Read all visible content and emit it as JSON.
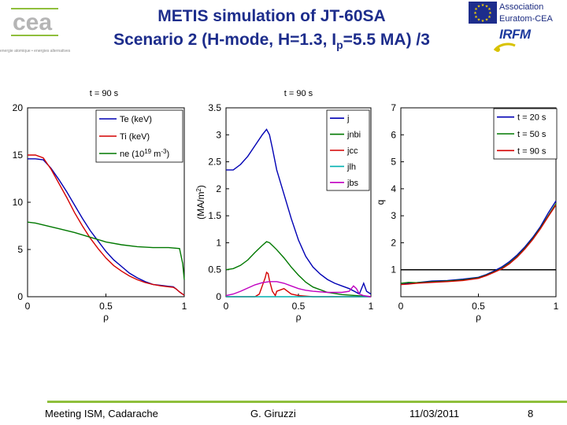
{
  "header": {
    "title_line1": "METIS simulation of JT-60SA",
    "title_line2_prefix": "Scenario 2 (H-mode, H=1.3, I",
    "title_line2_sub": "p",
    "title_line2_suffix": "=5.5 MA) /3",
    "assoc_line1": "Association",
    "assoc_line2": "Euratom-CEA",
    "irfm_logo": "IRFM",
    "cea_logo": "cea",
    "cea_tagline": "energie atomique • energies alternatives"
  },
  "footer": {
    "meeting": "Meeting ISM, Cadarache",
    "author": "G. Giruzzi",
    "date": "11/03/2011",
    "page": "8"
  },
  "colors": {
    "title": "#1d2d8c",
    "blue": "#0000b4",
    "red": "#d40000",
    "green": "#007800",
    "cyan": "#00b0b0",
    "magenta": "#c000c0",
    "footer_line": "#8fbf3c"
  },
  "chart_data": [
    {
      "type": "line",
      "title": "t = 90 s",
      "xlabel": "ρ",
      "ylabel": "",
      "xlim": [
        0,
        1
      ],
      "ylim": [
        0,
        20
      ],
      "xticks": [
        "0",
        "0.5",
        "1"
      ],
      "yticks": [
        "0",
        "5",
        "10",
        "15",
        "20"
      ],
      "legend_position": "top-right",
      "series": [
        {
          "name": "Te (keV)",
          "color": "#0000b4",
          "x": [
            0,
            0.05,
            0.1,
            0.15,
            0.2,
            0.25,
            0.3,
            0.35,
            0.4,
            0.45,
            0.5,
            0.55,
            0.6,
            0.65,
            0.7,
            0.75,
            0.8,
            0.85,
            0.9,
            0.93,
            0.95,
            0.97,
            1.0
          ],
          "y": [
            14.6,
            14.6,
            14.5,
            13.6,
            12.4,
            11.1,
            9.7,
            8.3,
            7.0,
            5.9,
            4.8,
            3.9,
            3.2,
            2.5,
            2.0,
            1.6,
            1.3,
            1.2,
            1.1,
            1.05,
            0.8,
            0.5,
            0.15
          ]
        },
        {
          "name": "Ti (keV)",
          "color": "#d40000",
          "x": [
            0,
            0.05,
            0.1,
            0.15,
            0.2,
            0.25,
            0.3,
            0.35,
            0.4,
            0.45,
            0.5,
            0.55,
            0.6,
            0.65,
            0.7,
            0.75,
            0.8,
            0.85,
            0.9,
            0.93,
            0.95,
            0.97,
            1.0
          ],
          "y": [
            15.0,
            15.0,
            14.7,
            13.5,
            12.0,
            10.5,
            8.9,
            7.5,
            6.2,
            5.1,
            4.1,
            3.3,
            2.7,
            2.2,
            1.8,
            1.5,
            1.3,
            1.15,
            1.05,
            1.0,
            0.8,
            0.5,
            0.15
          ]
        },
        {
          "name": "ne (10^19 m^-3)",
          "color": "#007800",
          "x": [
            0,
            0.05,
            0.1,
            0.15,
            0.2,
            0.3,
            0.4,
            0.5,
            0.6,
            0.7,
            0.8,
            0.9,
            0.97,
            0.99,
            1.0
          ],
          "y": [
            7.9,
            7.8,
            7.6,
            7.4,
            7.2,
            6.8,
            6.3,
            5.8,
            5.5,
            5.3,
            5.2,
            5.2,
            5.1,
            3.5,
            1.8
          ]
        }
      ]
    },
    {
      "type": "line",
      "title": "t = 90 s",
      "xlabel": "ρ",
      "ylabel": "(MA/m^2)",
      "xlim": [
        0,
        1
      ],
      "ylim": [
        0,
        3.5
      ],
      "xticks": [
        "0",
        "0.5",
        "1"
      ],
      "yticks": [
        "0",
        "0.5",
        "1",
        "1.5",
        "2",
        "2.5",
        "3",
        "3.5"
      ],
      "legend_position": "top-right",
      "series": [
        {
          "name": "j",
          "color": "#0000b4",
          "x": [
            0,
            0.05,
            0.1,
            0.15,
            0.2,
            0.25,
            0.28,
            0.3,
            0.32,
            0.35,
            0.4,
            0.45,
            0.5,
            0.55,
            0.6,
            0.65,
            0.7,
            0.75,
            0.8,
            0.85,
            0.9,
            0.92,
            0.95,
            0.97,
            1.0
          ],
          "y": [
            2.35,
            2.35,
            2.45,
            2.6,
            2.8,
            3.0,
            3.1,
            3.0,
            2.75,
            2.35,
            1.9,
            1.45,
            1.05,
            0.75,
            0.55,
            0.42,
            0.32,
            0.25,
            0.2,
            0.15,
            0.08,
            0.05,
            0.25,
            0.1,
            0.05
          ]
        },
        {
          "name": "jnbi",
          "color": "#007800",
          "x": [
            0,
            0.05,
            0.1,
            0.15,
            0.2,
            0.25,
            0.28,
            0.3,
            0.32,
            0.35,
            0.4,
            0.45,
            0.5,
            0.55,
            0.6,
            0.7,
            0.8,
            0.9,
            1.0
          ],
          "y": [
            0.5,
            0.52,
            0.58,
            0.68,
            0.82,
            0.95,
            1.02,
            1.0,
            0.95,
            0.87,
            0.72,
            0.55,
            0.4,
            0.27,
            0.18,
            0.08,
            0.04,
            0.02,
            0.0
          ]
        },
        {
          "name": "jcc",
          "color": "#d40000",
          "x": [
            0,
            0.1,
            0.2,
            0.23,
            0.25,
            0.27,
            0.28,
            0.29,
            0.3,
            0.32,
            0.34,
            0.35,
            0.4,
            0.45,
            0.5,
            0.6,
            0.8,
            1.0
          ],
          "y": [
            0.0,
            0.0,
            0.0,
            0.05,
            0.2,
            0.35,
            0.45,
            0.43,
            0.3,
            0.1,
            0.02,
            0.1,
            0.15,
            0.05,
            0.02,
            0.0,
            0.0,
            0.0
          ]
        },
        {
          "name": "jlh",
          "color": "#00b0b0",
          "x": [
            0,
            0.5,
            1.0
          ],
          "y": [
            0.0,
            0.0,
            0.0
          ]
        },
        {
          "name": "jbs",
          "color": "#c000c0",
          "x": [
            0,
            0.05,
            0.1,
            0.15,
            0.2,
            0.25,
            0.3,
            0.35,
            0.4,
            0.45,
            0.5,
            0.55,
            0.6,
            0.7,
            0.8,
            0.85,
            0.88,
            0.9,
            0.92,
            0.95,
            1.0
          ],
          "y": [
            0.02,
            0.05,
            0.1,
            0.16,
            0.22,
            0.26,
            0.28,
            0.28,
            0.25,
            0.2,
            0.15,
            0.12,
            0.1,
            0.08,
            0.08,
            0.1,
            0.2,
            0.15,
            0.05,
            0.02,
            0.0
          ]
        }
      ]
    },
    {
      "type": "line",
      "title": "",
      "xlabel": "ρ",
      "ylabel": "q",
      "xlim": [
        0,
        1
      ],
      "ylim": [
        0,
        7
      ],
      "xticks": [
        "0",
        "0.5",
        "1"
      ],
      "yticks": [
        "1",
        "2",
        "3",
        "4",
        "5",
        "6",
        "7"
      ],
      "legend_position": "top-right",
      "reference_line": {
        "y": 1
      },
      "series": [
        {
          "name": "t = 20 s",
          "color": "#0000b4",
          "x": [
            0,
            0.05,
            0.1,
            0.2,
            0.3,
            0.4,
            0.5,
            0.55,
            0.6,
            0.65,
            0.7,
            0.75,
            0.8,
            0.85,
            0.9,
            0.95,
            1.0
          ],
          "y": [
            0.45,
            0.5,
            0.52,
            0.58,
            0.6,
            0.65,
            0.72,
            0.82,
            0.95,
            1.1,
            1.3,
            1.55,
            1.85,
            2.2,
            2.6,
            3.1,
            3.55
          ]
        },
        {
          "name": "t = 50 s",
          "color": "#007800",
          "x": [
            0,
            0.05,
            0.1,
            0.2,
            0.3,
            0.4,
            0.5,
            0.55,
            0.6,
            0.65,
            0.7,
            0.75,
            0.8,
            0.85,
            0.9,
            0.95,
            1.0
          ],
          "y": [
            0.5,
            0.53,
            0.52,
            0.55,
            0.58,
            0.62,
            0.7,
            0.8,
            0.92,
            1.05,
            1.25,
            1.5,
            1.8,
            2.15,
            2.55,
            3.0,
            3.45
          ]
        },
        {
          "name": "t = 90 s",
          "color": "#d40000",
          "x": [
            0,
            0.05,
            0.1,
            0.2,
            0.3,
            0.4,
            0.5,
            0.55,
            0.6,
            0.65,
            0.7,
            0.75,
            0.8,
            0.85,
            0.9,
            0.95,
            1.0
          ],
          "y": [
            0.45,
            0.47,
            0.5,
            0.53,
            0.56,
            0.6,
            0.68,
            0.78,
            0.9,
            1.03,
            1.22,
            1.47,
            1.77,
            2.12,
            2.52,
            2.97,
            3.4
          ]
        }
      ]
    }
  ]
}
